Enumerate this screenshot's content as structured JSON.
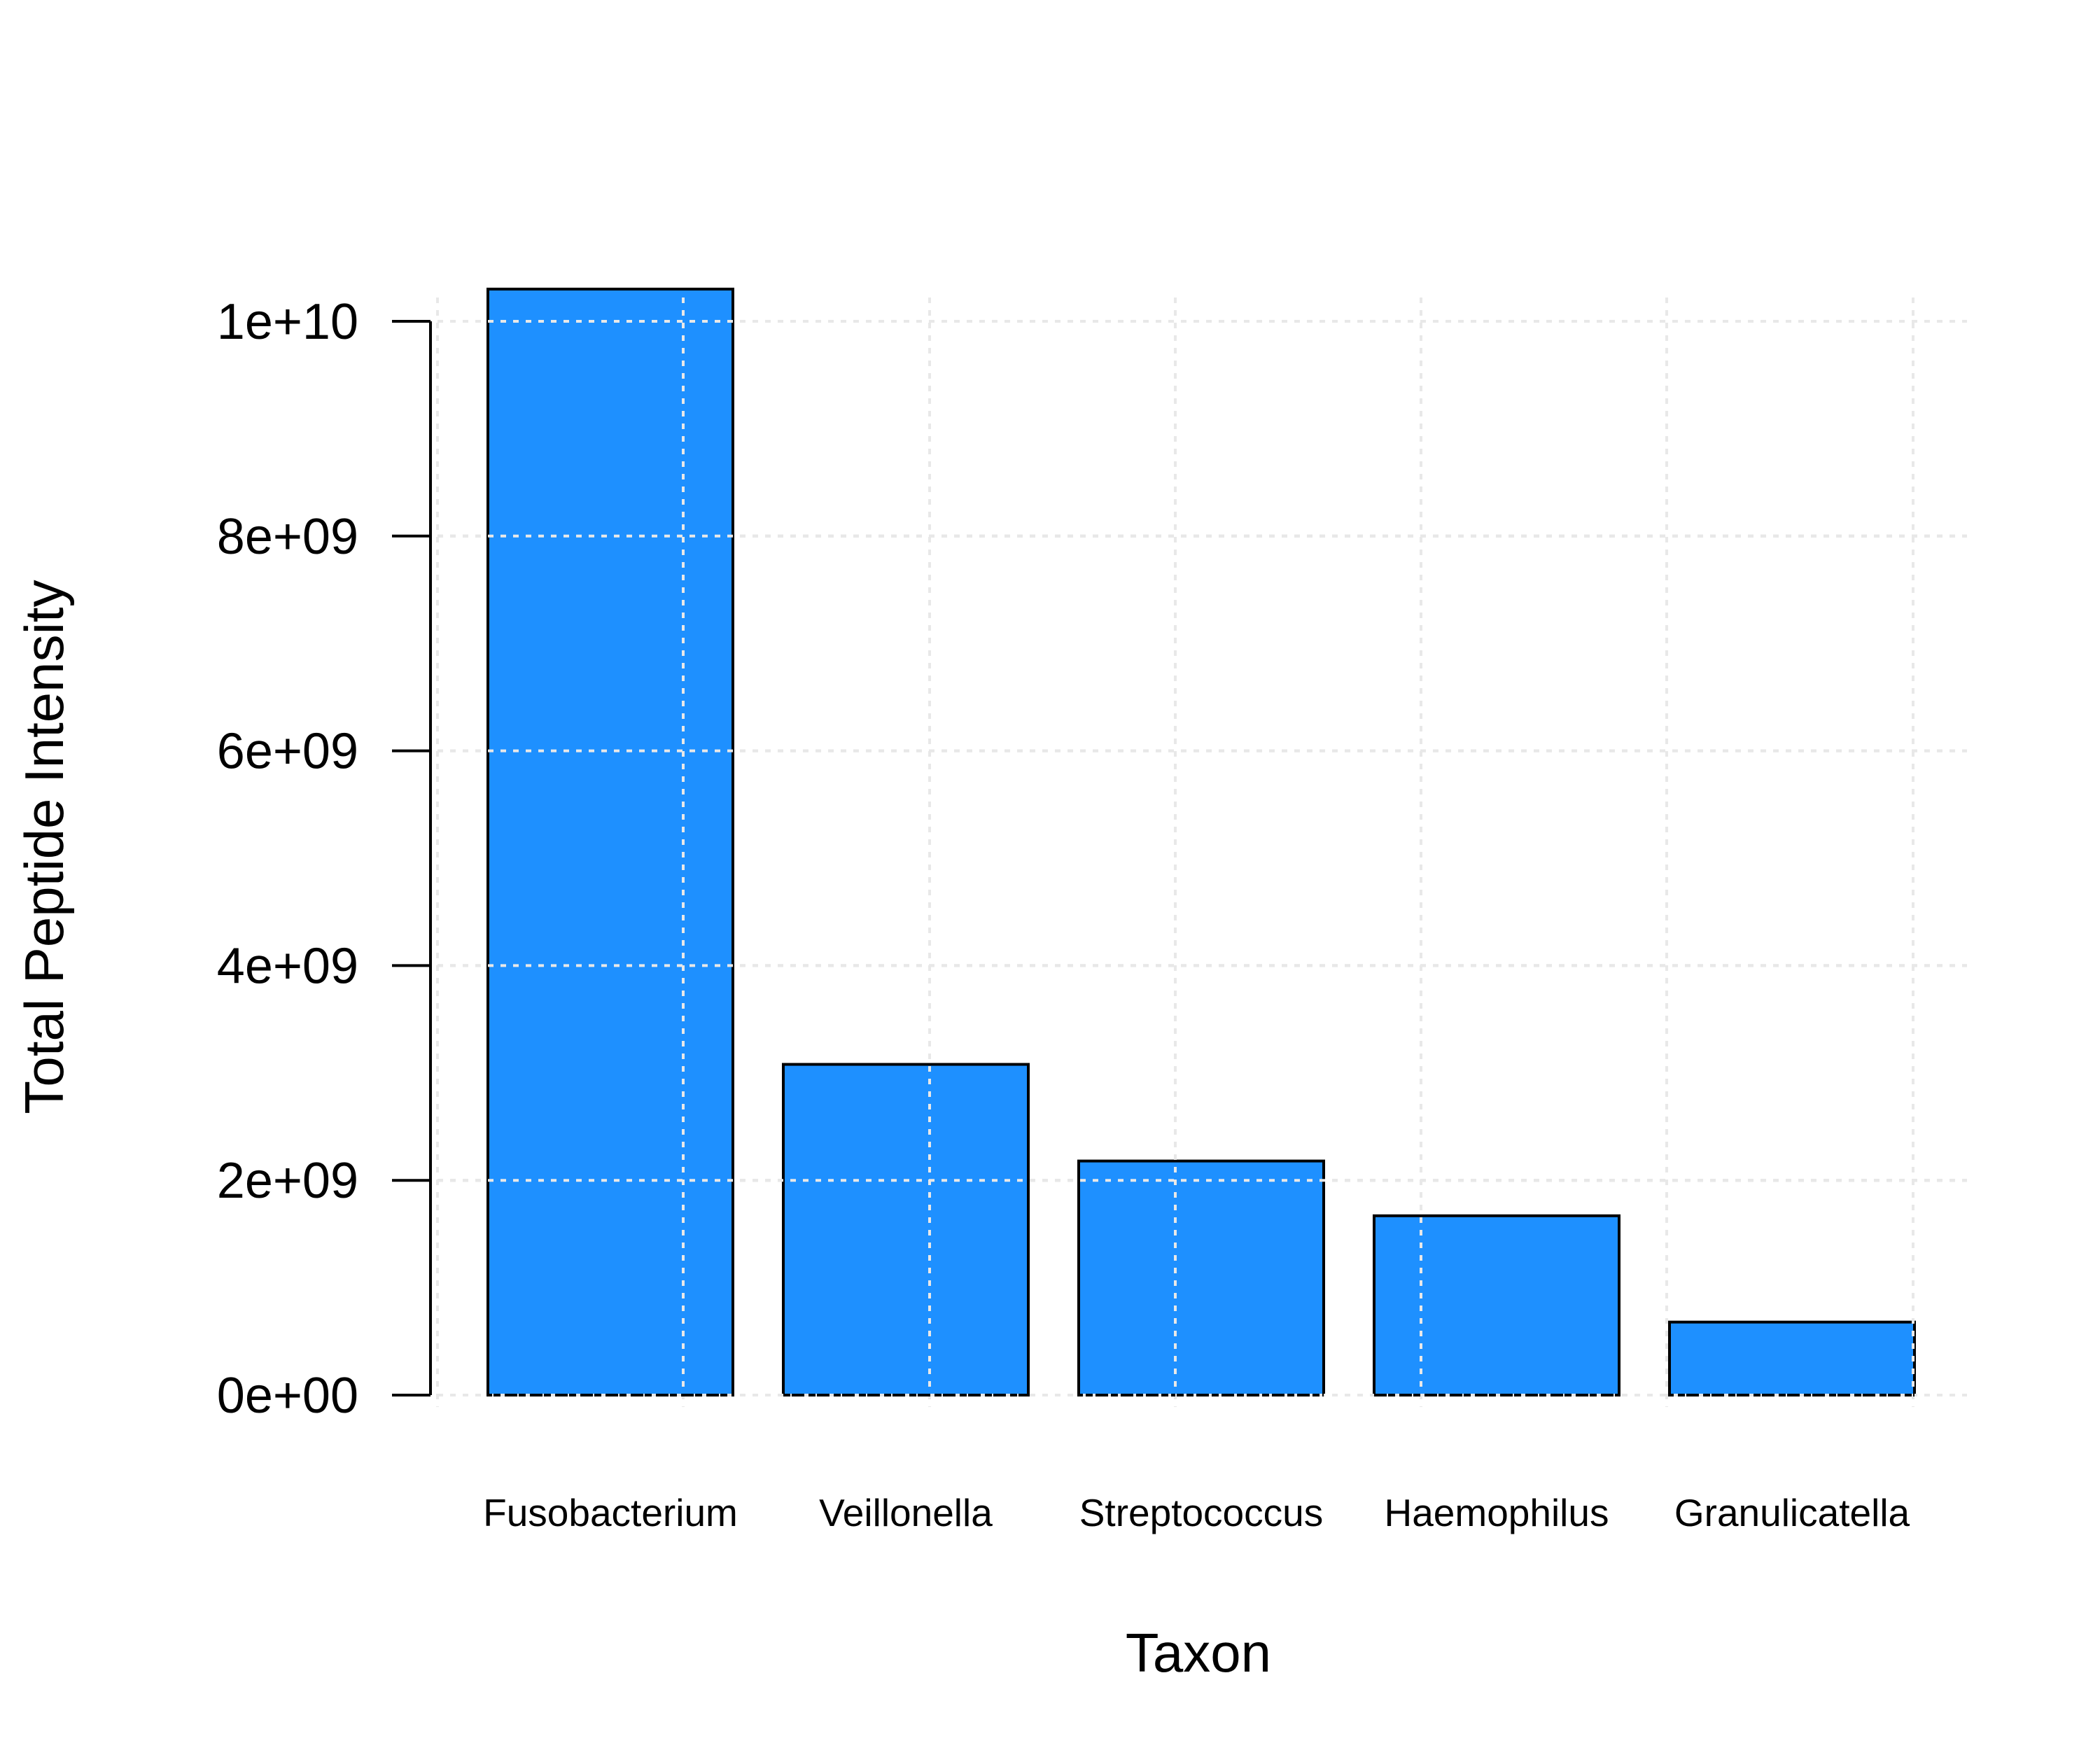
{
  "chart_data": {
    "type": "bar",
    "categories": [
      "Fusobacterium",
      "Veillonella",
      "Streptococcus",
      "Haemophilus",
      "Granulicatella"
    ],
    "values": [
      10300000000,
      3080000000,
      2180000000,
      1670000000,
      680000000
    ],
    "xlabel": "Taxon",
    "ylabel": "Total Peptide Intensity",
    "ylim": [
      0,
      10000000000
    ],
    "yticks": [
      0,
      2000000000,
      4000000000,
      6000000000,
      8000000000,
      10000000000
    ],
    "ytick_labels": [
      "0e+00",
      "2e+09",
      "4e+09",
      "6e+09",
      "8e+09",
      "1e+10"
    ],
    "grid": true,
    "bar_color": "#1E90FF",
    "bar_edge_color": "#000000"
  }
}
